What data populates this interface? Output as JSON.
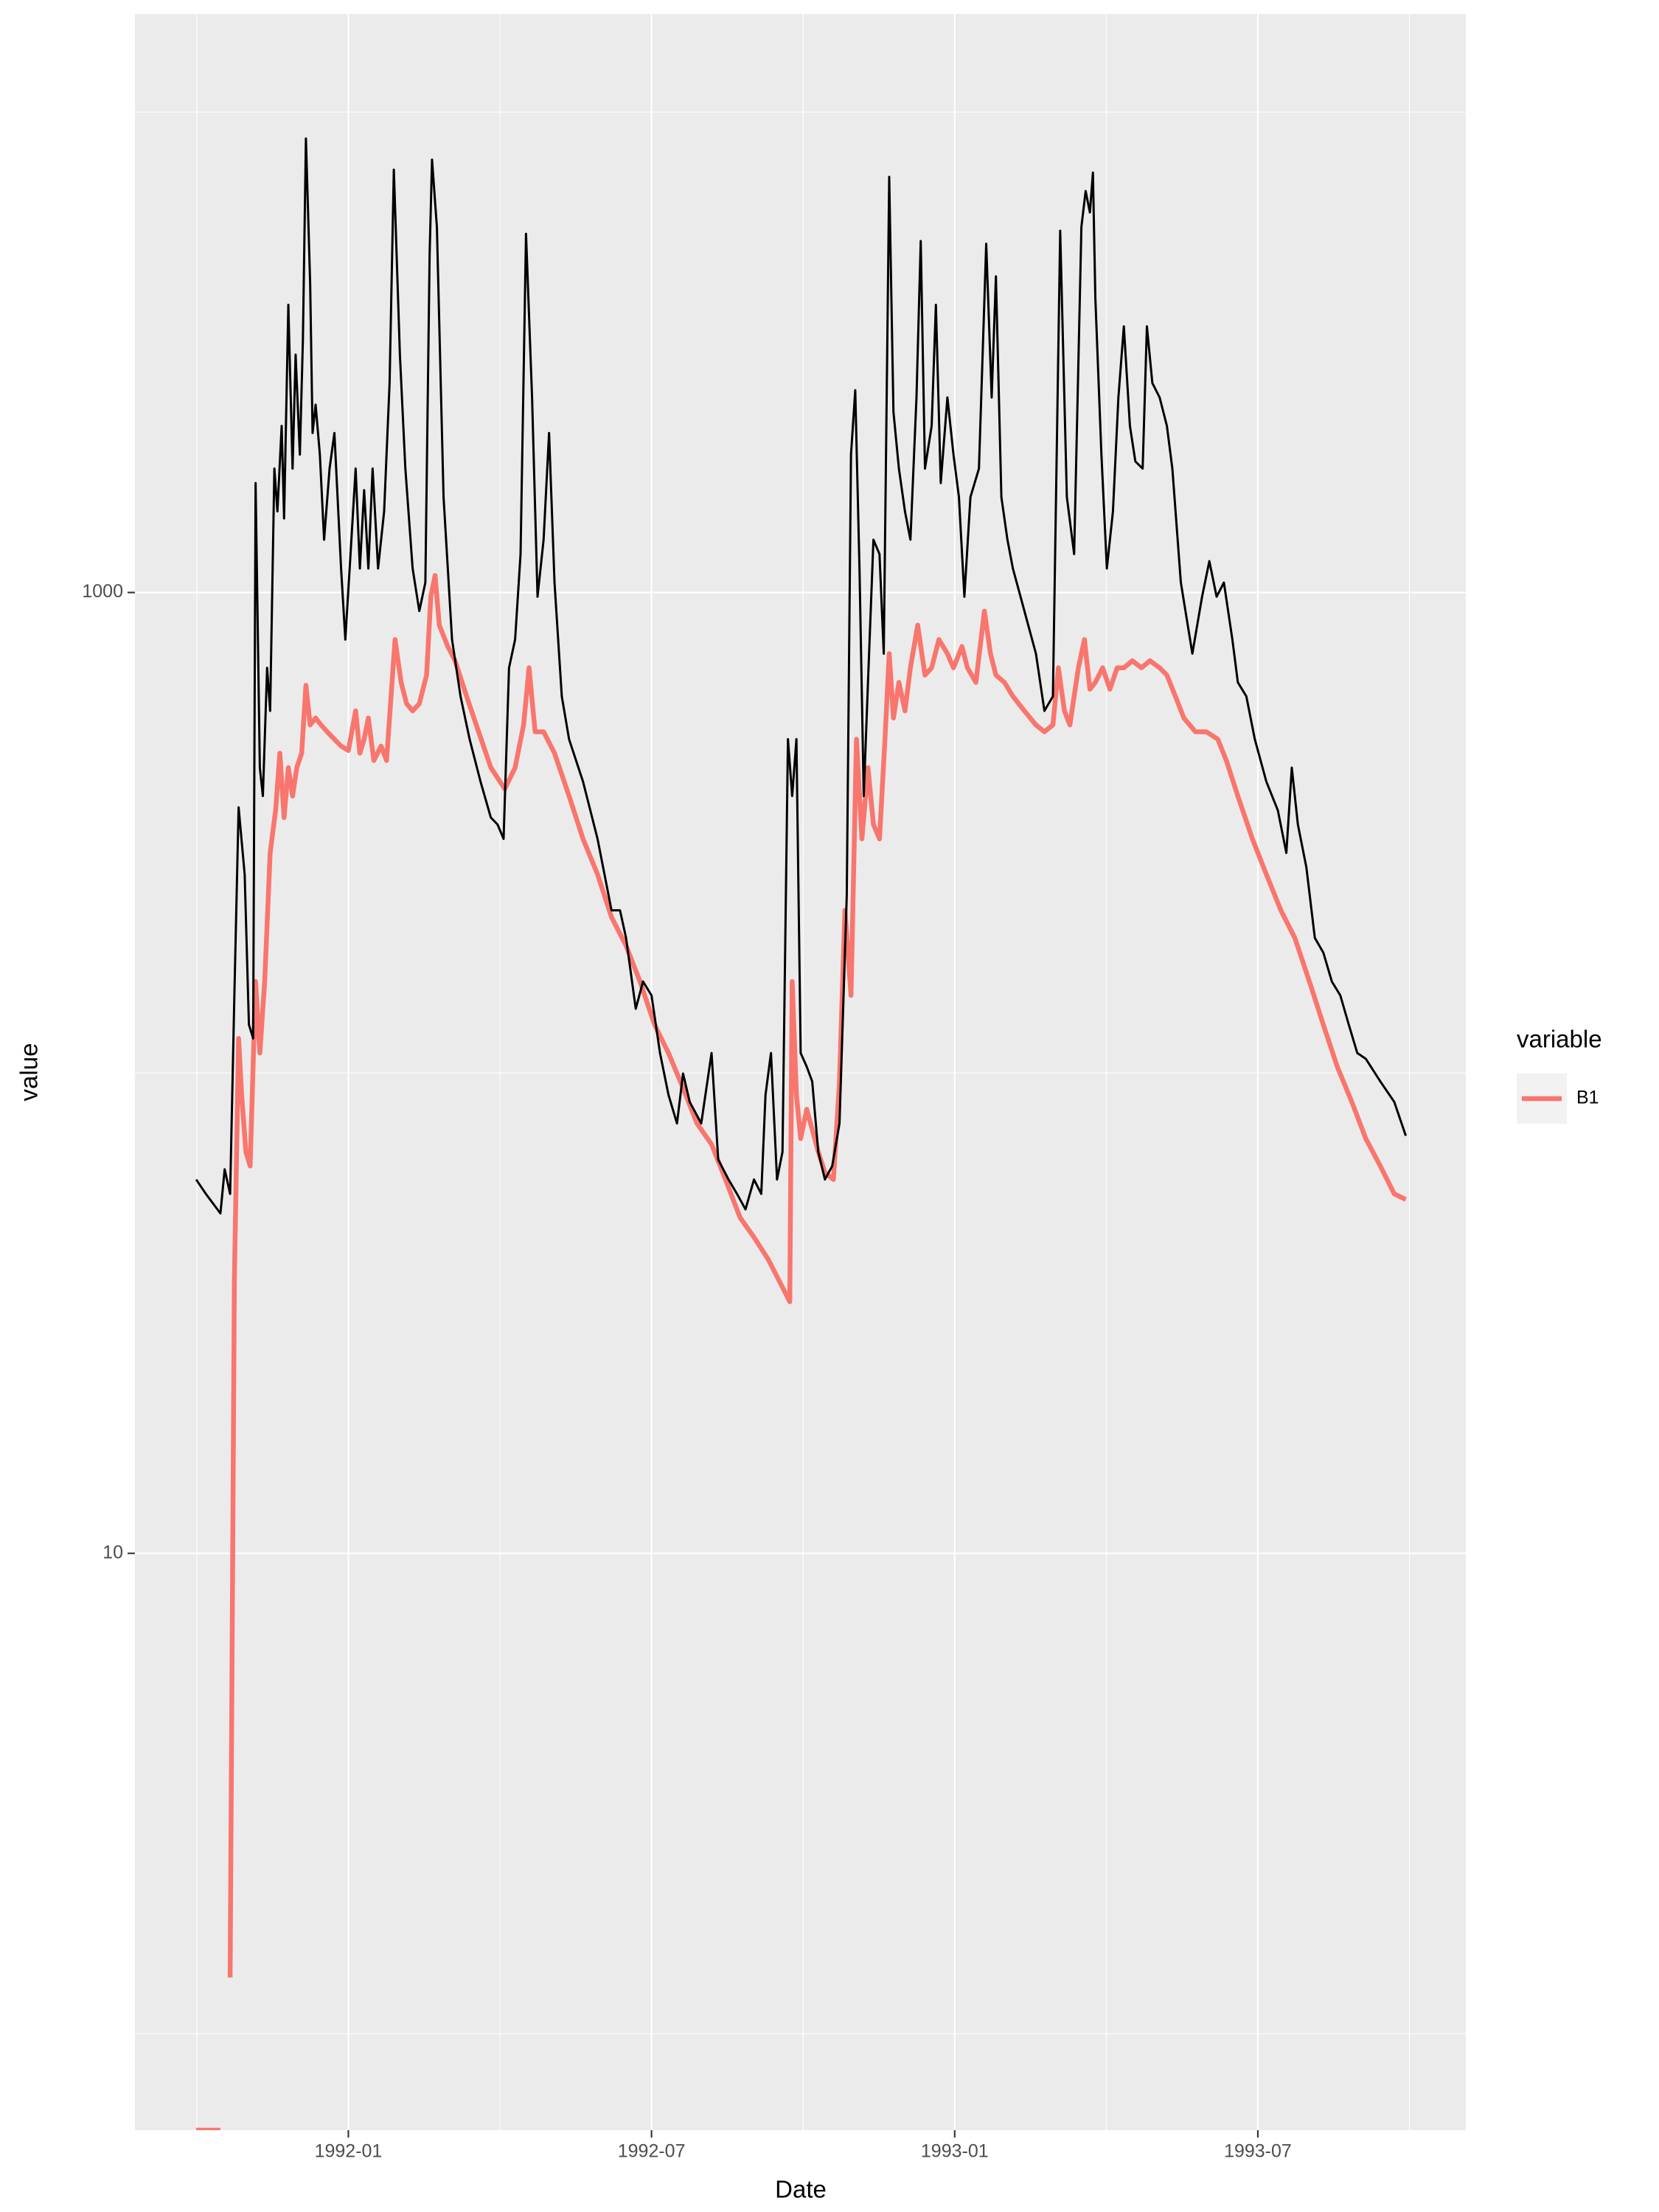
{
  "chart_data": {
    "type": "line",
    "x_label": "Date",
    "y_label": "value",
    "legend_title": "variable",
    "log_y": true,
    "grid": true,
    "legend_position": "right",
    "xlim": [
      1991.648,
      1993.843
    ],
    "xticks": [
      {
        "value": 1992,
        "label": "1992-01"
      },
      {
        "value": 1992.5,
        "label": "1992-07"
      },
      {
        "value": 1993,
        "label": "1993-01"
      },
      {
        "value": 1993.5,
        "label": "1993-07"
      }
    ],
    "ylim": [
      0.63,
      16000
    ],
    "yticks": [
      10,
      1000
    ],
    "series": [
      {
        "color": "#000000",
        "x": [
          1991.749,
          1991.765,
          1991.789,
          1991.796,
          1991.805,
          1991.812,
          1991.819,
          1991.829,
          1991.836,
          1991.843,
          1991.847,
          1991.854,
          1991.859,
          1991.866,
          1991.871,
          1991.878,
          1991.883,
          1991.89,
          1991.894,
          1991.901,
          1991.908,
          1991.913,
          1991.92,
          1991.925,
          1991.93,
          1991.937,
          1991.941,
          1991.946,
          1991.953,
          1991.96,
          1991.969,
          1991.977,
          1991.988,
          1991.995,
          1992.005,
          1992.012,
          1992.019,
          1992.026,
          1992.033,
          1992.04,
          1992.049,
          1992.059,
          1992.068,
          1992.075,
          1992.085,
          1992.094,
          1992.106,
          1992.117,
          1992.127,
          1992.134,
          1992.138,
          1992.146,
          1992.157,
          1992.171,
          1992.185,
          1992.2,
          1992.218,
          1992.235,
          1992.246,
          1992.256,
          1992.265,
          1992.275,
          1992.284,
          1992.293,
          1992.303,
          1992.312,
          1992.322,
          1992.331,
          1992.34,
          1992.352,
          1992.364,
          1992.387,
          1992.411,
          1992.434,
          1992.448,
          1992.458,
          1992.474,
          1992.486,
          1992.5,
          1992.514,
          1992.528,
          1992.542,
          1992.552,
          1992.563,
          1992.582,
          1992.599,
          1992.61,
          1992.627,
          1992.641,
          1992.655,
          1992.669,
          1992.681,
          1992.688,
          1992.697,
          1992.707,
          1992.716,
          1992.725,
          1992.732,
          1992.739,
          1992.746,
          1992.756,
          1992.765,
          1992.775,
          1992.786,
          1992.798,
          1992.81,
          1992.822,
          1992.829,
          1992.836,
          1992.843,
          1992.85,
          1992.857,
          1992.866,
          1992.876,
          1992.883,
          1992.892,
          1992.899,
          1992.908,
          1992.918,
          1992.927,
          1992.937,
          1992.944,
          1992.951,
          1992.962,
          1992.969,
          1992.977,
          1992.988,
          1992.998,
          1993.007,
          1993.016,
          1993.026,
          1993.04,
          1993.052,
          1993.061,
          1993.068,
          1993.077,
          1993.087,
          1993.096,
          1993.115,
          1993.134,
          1993.148,
          1993.162,
          1993.174,
          1993.185,
          1993.197,
          1993.209,
          1993.216,
          1993.223,
          1993.228,
          1993.232,
          1993.242,
          1993.251,
          1993.261,
          1993.27,
          1993.279,
          1993.289,
          1993.298,
          1993.31,
          1993.317,
          1993.326,
          1993.338,
          1993.35,
          1993.359,
          1993.373,
          1993.392,
          1993.408,
          1993.42,
          1993.432,
          1993.444,
          1993.458,
          1993.467,
          1993.481,
          1993.495,
          1993.514,
          1993.533,
          1993.547,
          1993.556,
          1993.566,
          1993.58,
          1993.594,
          1993.608,
          1993.622,
          1993.636,
          1993.65,
          1993.664,
          1993.678,
          1993.702,
          1993.725,
          1993.744
        ],
        "values": [
          60,
          56,
          51,
          63,
          56,
          145,
          357,
          259,
          126,
          118,
          1690,
          432,
          377,
          697,
          567,
          1811,
          1475,
          2222,
          1426,
          3970,
          1811,
          3126,
          1937,
          3343,
          8810,
          4395,
          2148,
          2460,
          1937,
          1288,
          1811,
          2148,
          1122,
          798,
          1288,
          1811,
          1122,
          1633,
          1122,
          1811,
          1122,
          1475,
          2729,
          7586,
          3126,
          1811,
          1122,
          915,
          1049,
          5035,
          7960,
          5770,
          1580,
          798,
          608,
          495,
          404,
          340,
          329,
          307,
          697,
          798,
          1202,
          5580,
          2547,
          980,
          1288,
          2148,
          1049,
          608,
          495,
          404,
          307,
          218,
          218,
          191,
          136,
          155,
          145,
          110,
          90,
          78.5,
          99.7,
          87,
          78.5,
          110,
          66,
          60,
          56,
          52,
          60,
          56,
          90,
          110,
          60,
          68.5,
          495,
          377,
          495,
          110,
          103,
          96,
          68.5,
          60,
          64,
          78.5,
          234,
          1937,
          2636,
          1122,
          377,
          650,
          1288,
          1202,
          746,
          7330,
          2377,
          1811,
          1475,
          1288,
          2547,
          5390,
          1811,
          2222,
          3970,
          1690,
          2547,
          1937,
          1580,
          980,
          1580,
          1811,
          5320,
          2547,
          4550,
          1580,
          1288,
          1122,
          915,
          746,
          567,
          608,
          5660,
          1580,
          1202,
          5770,
          6850,
          6180,
          7480,
          4100,
          1937,
          1122,
          1475,
          2547,
          3580,
          2222,
          1874,
          1811,
          3580,
          2729,
          2547,
          2222,
          1811,
          1049,
          746,
          980,
          1162,
          980,
          1049,
          798,
          650,
          608,
          495,
          404,
          352,
          287,
          432,
          329,
          268,
          191,
          178,
          155,
          145,
          126,
          110,
          107,
          96,
          87,
          74
        ]
      },
      {
        "name": "B1",
        "color": "#F8766D",
        "x": [
          1991.749,
          1991.789,
          1991.796,
          1991.805,
          1991.812,
          1991.819,
          1991.824,
          1991.831,
          1991.838,
          1991.847,
          1991.854,
          1991.862,
          1991.871,
          1991.88,
          1991.887,
          1991.894,
          1991.901,
          1991.908,
          1991.915,
          1991.923,
          1991.93,
          1991.937,
          1991.946,
          1991.955,
          1991.965,
          1991.977,
          1991.988,
          1992.0,
          1992.012,
          1992.019,
          1992.026,
          1992.033,
          1992.042,
          1992.054,
          1992.063,
          1992.077,
          1992.087,
          1992.096,
          1992.106,
          1992.117,
          1992.129,
          1992.136,
          1992.143,
          1992.15,
          1992.164,
          1992.176,
          1992.195,
          1992.211,
          1992.235,
          1992.258,
          1992.275,
          1992.289,
          1992.298,
          1992.308,
          1992.322,
          1992.34,
          1992.364,
          1992.387,
          1992.411,
          1992.434,
          1992.458,
          1992.481,
          1992.505,
          1992.528,
          1992.552,
          1992.575,
          1992.599,
          1992.622,
          1992.646,
          1992.669,
          1992.692,
          1992.716,
          1992.728,
          1992.732,
          1992.739,
          1992.746,
          1992.756,
          1992.775,
          1992.786,
          1992.8,
          1992.81,
          1992.819,
          1992.829,
          1992.838,
          1992.847,
          1992.857,
          1992.866,
          1992.876,
          1992.885,
          1992.892,
          1992.899,
          1992.908,
          1992.918,
          1992.927,
          1992.939,
          1992.951,
          1992.962,
          1992.974,
          1992.988,
          1992.998,
          1993.012,
          1993.021,
          1993.035,
          1993.049,
          1993.059,
          1993.068,
          1993.082,
          1993.096,
          1993.115,
          1993.134,
          1993.148,
          1993.162,
          1993.171,
          1993.181,
          1993.19,
          1993.204,
          1993.214,
          1993.223,
          1993.232,
          1993.244,
          1993.256,
          1993.268,
          1993.279,
          1993.293,
          1993.308,
          1993.322,
          1993.338,
          1993.35,
          1993.364,
          1993.378,
          1993.397,
          1993.415,
          1993.434,
          1993.448,
          1993.467,
          1993.491,
          1993.514,
          1993.538,
          1993.561,
          1993.585,
          1993.608,
          1993.631,
          1993.655,
          1993.678,
          1993.702,
          1993.725,
          1993.744
        ],
        "values": [
          0.63,
          0.63,
          null,
          1.31,
          37,
          118,
          90,
          68.5,
          64,
          155,
          110,
          155,
          287,
          352,
          463,
          340,
          432,
          377,
          432,
          463,
          641,
          530,
          548,
          530,
          513,
          495,
          479,
          469,
          567,
          463,
          495,
          548,
          447,
          479,
          447,
          798,
          650,
          587,
          567,
          587,
          673,
          980,
          1085,
          855,
          772,
          721,
          608,
          530,
          432,
          390,
          432,
          530,
          697,
          513,
          513,
          463,
          377,
          307,
          259,
          211,
          184,
          155,
          126,
          110,
          93,
          78.5,
          71,
          60,
          50,
          45.5,
          41,
          35.8,
          33.4,
          155,
          90,
          73,
          84,
          68.5,
          62,
          60,
          96,
          218,
          145,
          495,
          307,
          432,
          329,
          307,
          495,
          746,
          548,
          650,
          567,
          697,
          855,
          673,
          697,
          798,
          746,
          697,
          772,
          697,
          650,
          915,
          746,
          673,
          650,
          608,
          567,
          530,
          513,
          530,
          697,
          567,
          530,
          697,
          798,
          629,
          650,
          697,
          629,
          697,
          697,
          721,
          697,
          721,
          697,
          673,
          608,
          548,
          513,
          513,
          495,
          447,
          377,
          307,
          259,
          218,
          191,
          155,
          126,
          103,
          87,
          73,
          64,
          56,
          54.5
        ]
      }
    ]
  }
}
